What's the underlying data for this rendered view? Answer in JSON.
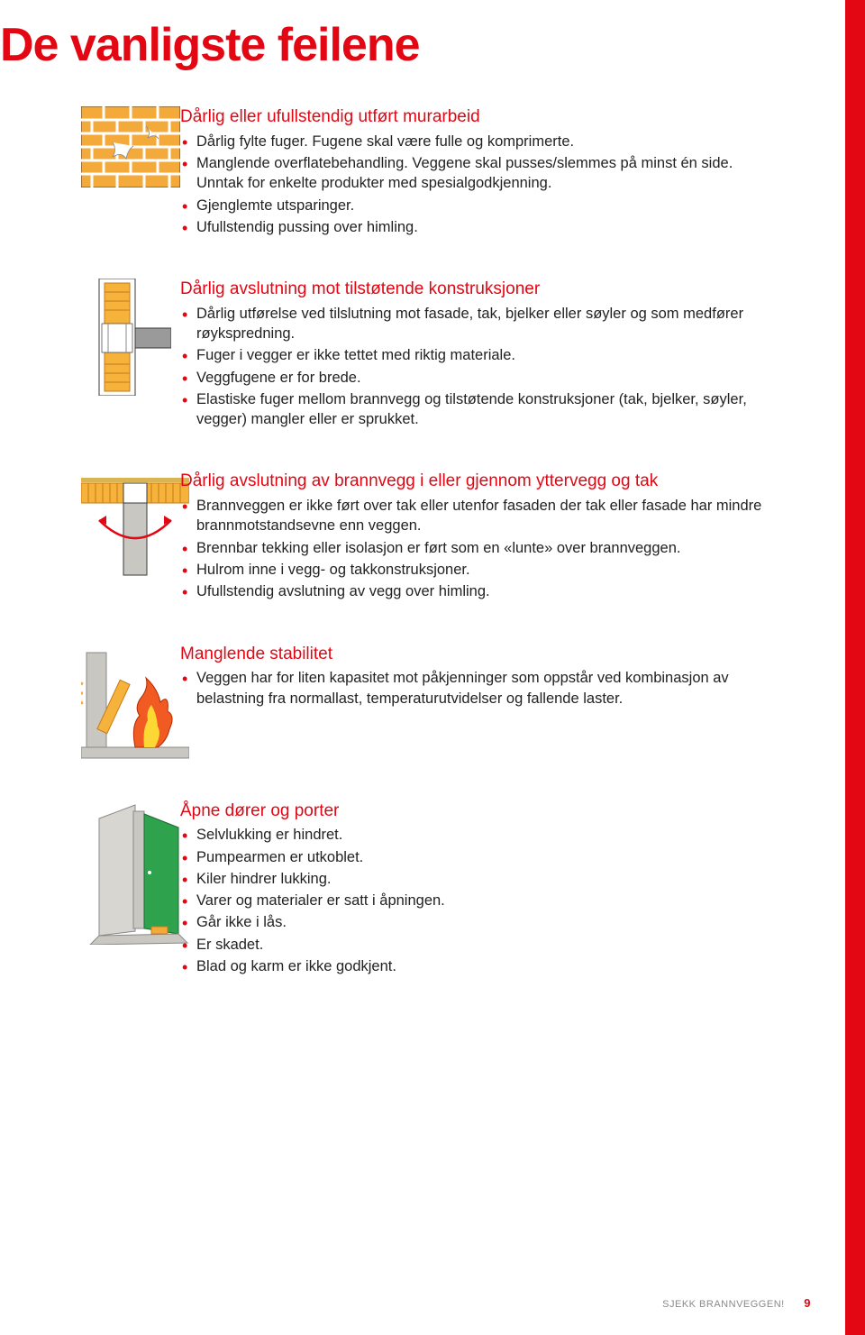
{
  "colors": {
    "accent": "#e30613",
    "body": "#222222",
    "footer_grey": "#8a8a8a",
    "brick": "#f4a93b",
    "brick_line": "#c77a1a",
    "insulation": "#f6b33c",
    "concrete": "#c9c7c1",
    "door_green": "#2fa24d",
    "outline": "#3a3a3a"
  },
  "title": "De vanligste feilene",
  "sections": [
    {
      "heading": "Dårlig eller ufullstendig utført murarbeid",
      "heading_color": "#e30613",
      "bullets": [
        "Dårlig fylte fuger. Fugene skal være fulle og komprimerte.",
        "Manglende overflatebehandling. Veggene skal pusses/slemmes på minst én side. Unntak for enkelte produkter med spesialgodkjenning.",
        "Gjenglemte utsparinger.",
        "Ufullstendig pussing over himling."
      ]
    },
    {
      "heading": "Dårlig avslutning mot tilstøtende konstruksjoner",
      "heading_color": "#e30613",
      "bullets": [
        "Dårlig utførelse ved tilslutning mot fasade, tak, bjelker eller søyler og som medfører røykspredning.",
        "Fuger i vegger er ikke tettet med riktig materiale.",
        "Veggfugene er for brede.",
        "Elastiske fuger mellom brannvegg og tilstøtende konstruksjoner (tak, bjelker, søyler, vegger) mangler eller er sprukket."
      ]
    },
    {
      "heading": "Dårlig avslutning av brannvegg i eller gjennom yttervegg og tak",
      "heading_color": "#e30613",
      "bullets": [
        "Brannveggen er ikke ført over tak eller utenfor fasaden der tak eller fasade har mindre brannmotstandsevne enn veggen.",
        "Brennbar tekking eller isolasjon er ført som en «lunte» over brannveggen.",
        "Hulrom inne i vegg- og takkonstruksjoner.",
        "Ufullstendig avslutning av vegg over himling."
      ]
    },
    {
      "heading": "Manglende stabilitet",
      "heading_color": "#e30613",
      "bullets": [
        "Veggen har for liten kapasitet mot påkjenninger som oppstår ved kombinasjon av belastning fra normallast, temperaturutvidelser og fallende laster."
      ]
    },
    {
      "heading": "Åpne dører og porter",
      "heading_color": "#e30613",
      "bullets": [
        "Selvlukking er hindret.",
        "Pumpearmen er utkoblet.",
        "Kiler hindrer lukking.",
        "Varer og materialer er satt i åpningen.",
        "Går ikke i lås.",
        "Er skadet.",
        "Blad og karm er ikke godkjent."
      ]
    }
  ],
  "footer": {
    "label": "SJEKK BRANNVEGGEN!",
    "page": "9"
  }
}
